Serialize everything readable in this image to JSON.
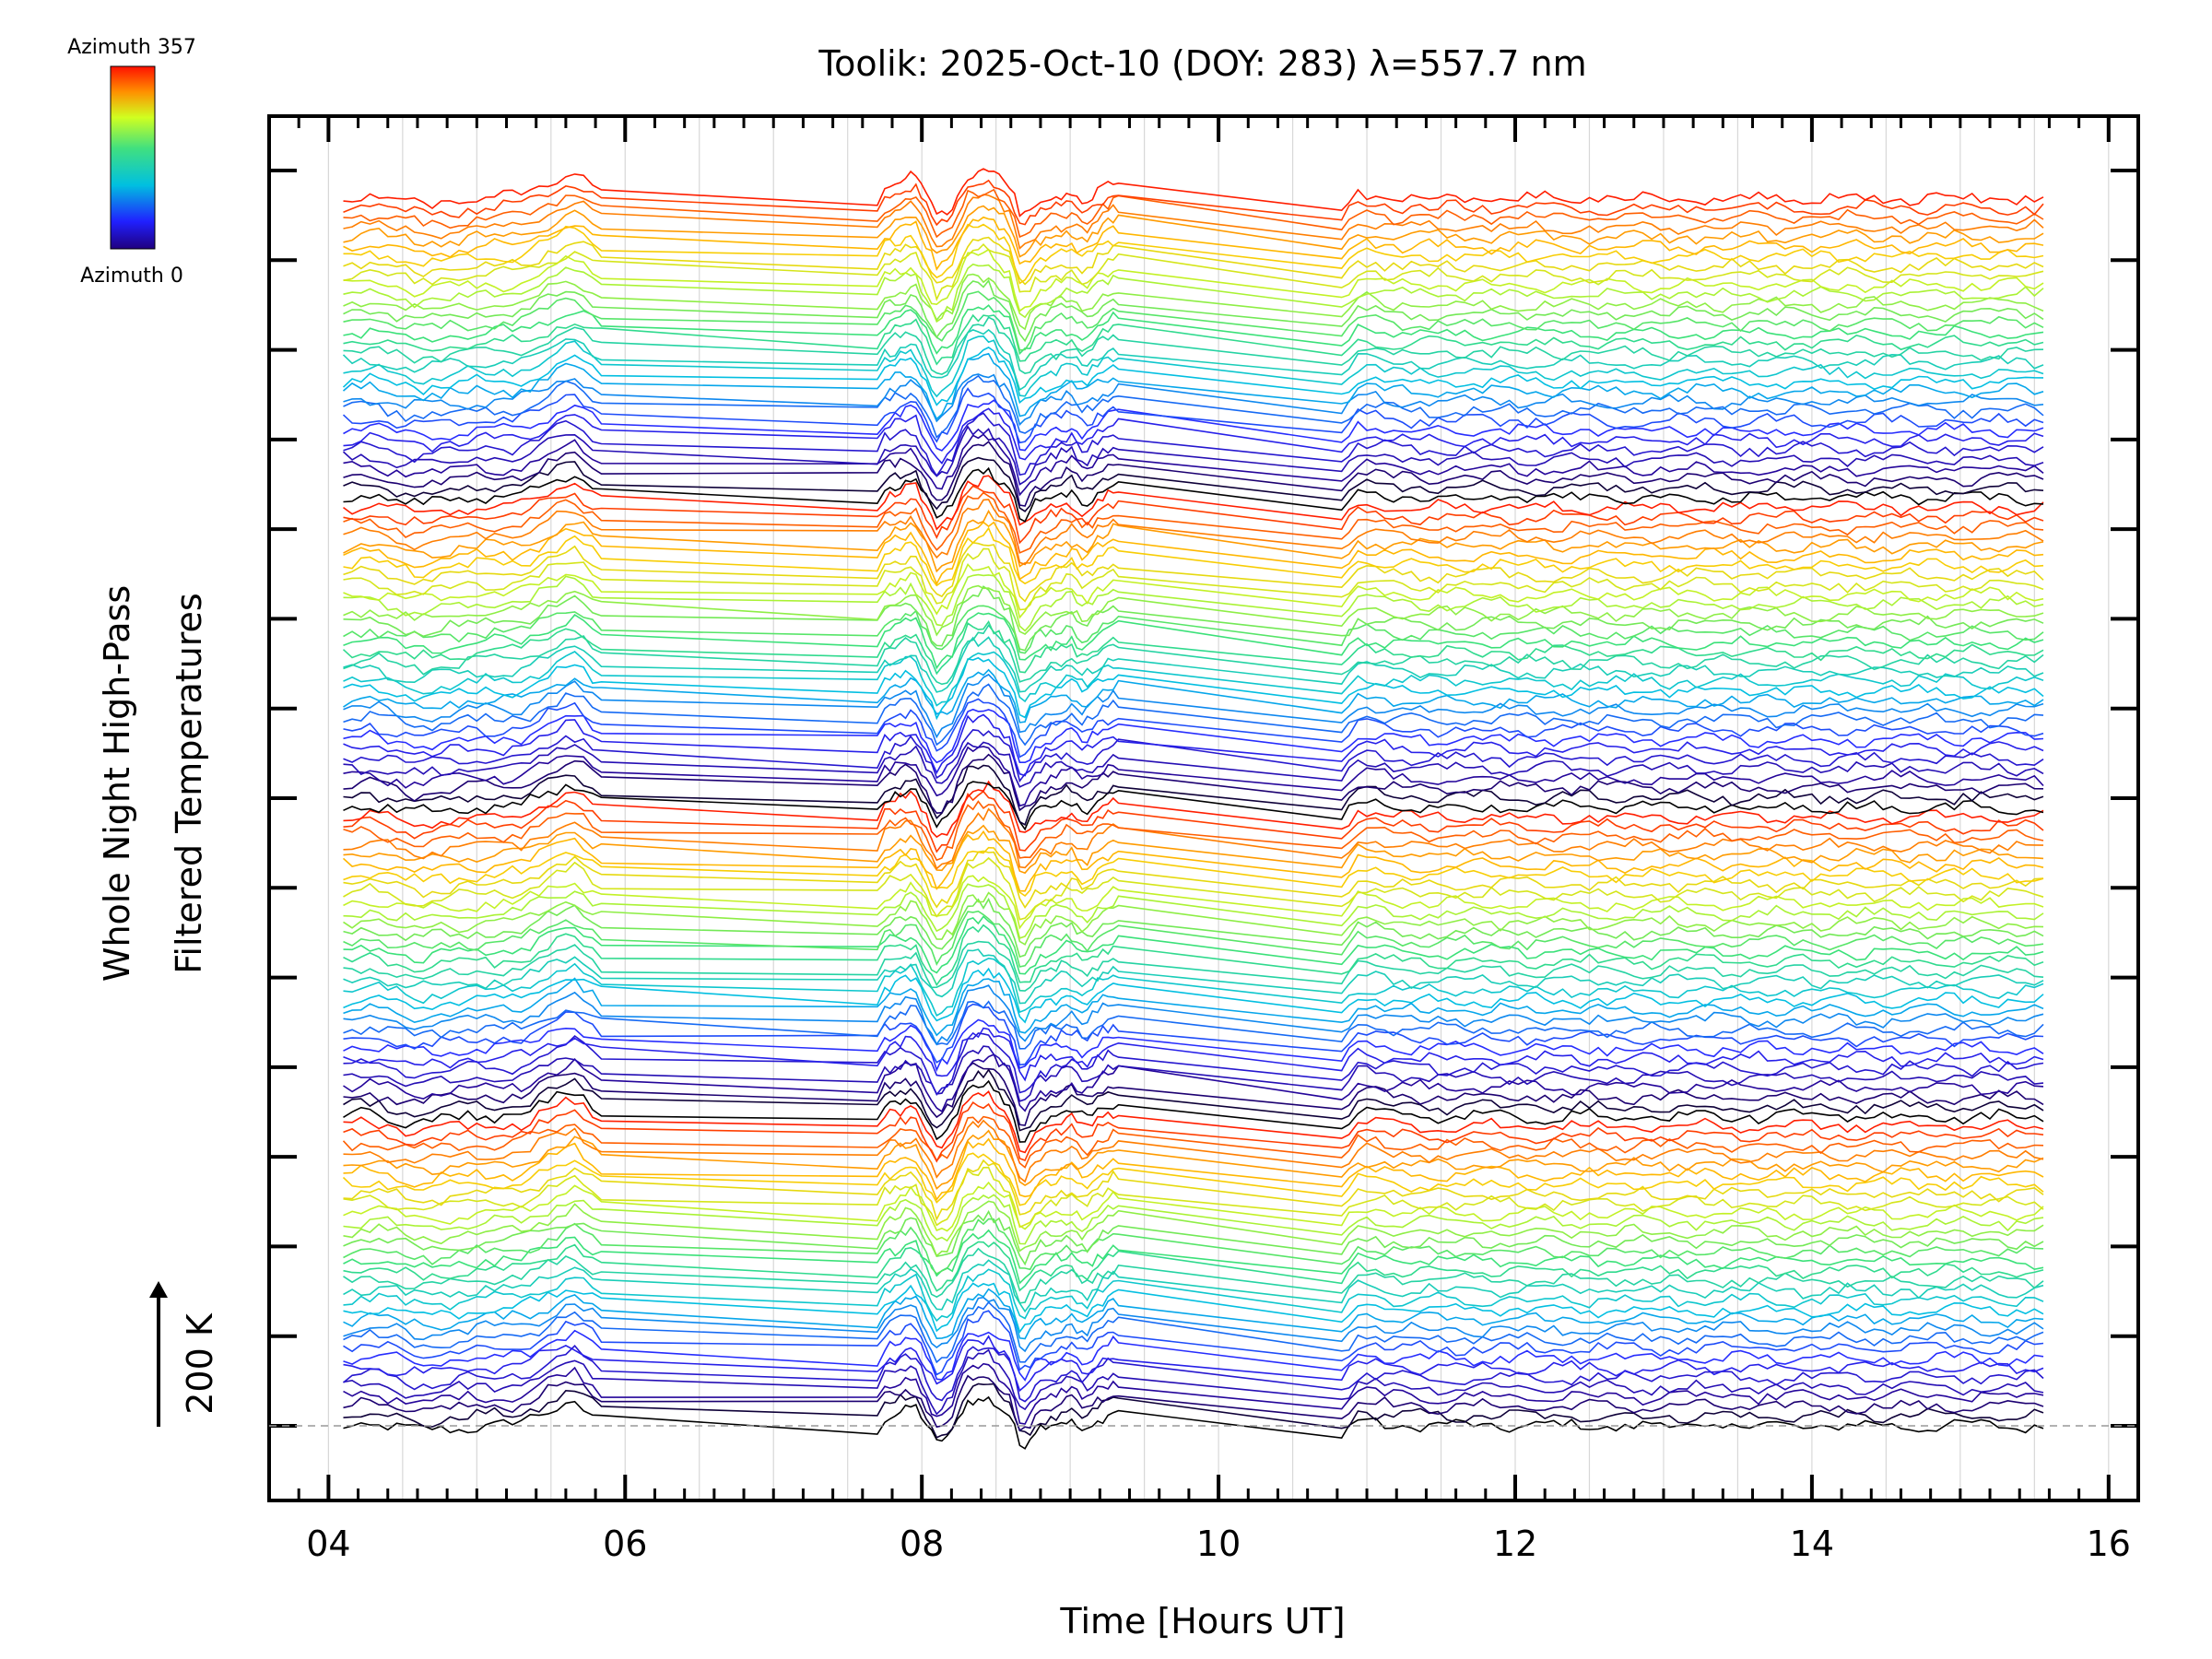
{
  "chart_data": {
    "type": "line",
    "title": "Toolik: 2025-Oct-10 (DOY: 283) λ=557.7 nm",
    "xlabel": "Time [Hours UT]",
    "ylabel_line1": "Whole Night High-Pass",
    "ylabel_line2": "Filtered Temperatures",
    "scale_label": "200 K",
    "xlim": [
      3.6,
      16.2
    ],
    "x_ticks": [
      4,
      6,
      8,
      10,
      12,
      14,
      16
    ],
    "x_tick_labels": [
      "04",
      "06",
      "08",
      "10",
      "12",
      "14",
      "16"
    ],
    "y_major_tick_count": 15,
    "grid": "vertical",
    "colorbar": {
      "top_label": "Azimuth 357",
      "bottom_label": "Azimuth 0",
      "colormap": "rainbow",
      "range": [
        0,
        357
      ]
    },
    "series_count": 128,
    "series_note": "Stacked high-pass filtered temperature traces, one per azimuth direction, colored by azimuth; offsets increase upward",
    "time_range": [
      4.1,
      15.6
    ],
    "common_shape": {
      "t": [
        4.1,
        4.3,
        4.6,
        5.0,
        5.3,
        5.65,
        5.85,
        7.7,
        7.75,
        7.95,
        8.1,
        8.2,
        8.3,
        8.45,
        8.6,
        8.67,
        8.78,
        9.0,
        9.1,
        9.2,
        9.3,
        10.83,
        10.95,
        11.2,
        15.6
      ],
      "delta": [
        0.0,
        0.3,
        -0.6,
        0.0,
        0.2,
        2.5,
        0.6,
        -0.2,
        1.0,
        2.0,
        -2.0,
        -1.0,
        2.5,
        3.0,
        1.0,
        -2.5,
        -0.5,
        0.6,
        -0.4,
        0.8,
        1.5,
        -1.2,
        0.6,
        0.0,
        0.0
      ]
    },
    "zero_baseline": "dashed"
  },
  "colors": {
    "axis": "#000000",
    "grid": "#d8d8d8",
    "baseline": "#999999",
    "background": "#ffffff"
  }
}
